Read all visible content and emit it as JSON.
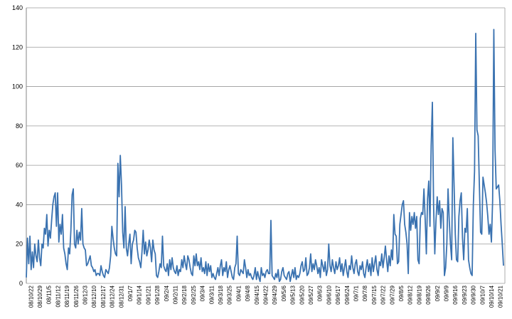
{
  "chart_data": {
    "type": "line",
    "title": "",
    "xlabel": "",
    "ylabel": "",
    "ylim": [
      0,
      140
    ],
    "yticks": [
      0,
      20,
      40,
      60,
      80,
      100,
      120,
      140
    ],
    "grid": "horizontal",
    "legend": "none",
    "line_color": "#3a72b0",
    "grid_color": "#9a9a9a",
    "xtick_labels": [
      "08/10/22",
      "08/10/29",
      "08/11/5",
      "08/11/12",
      "08/11/19",
      "08/11/26",
      "08/12/3",
      "08/12/10",
      "08/12/17",
      "08/12/24",
      "08/12/31",
      "09/1/7",
      "09/1/14",
      "09/1/21",
      "09/1/28",
      "09/2/4",
      "09/2/11",
      "09/2/18",
      "09/2/25",
      "09/3/4",
      "09/3/11",
      "09/3/18",
      "09/3/25",
      "09/4/1",
      "09/4/8",
      "09/4/15",
      "09/4/22",
      "09/4/29",
      "09/5/6",
      "09/5/13",
      "09/5/20",
      "09/5/27",
      "09/6/3",
      "09/6/10",
      "09/6/17",
      "09/6/24",
      "09/7/1",
      "09/7/8",
      "09/7/15",
      "09/7/22",
      "09/7/29",
      "09/8/5",
      "09/8/12",
      "09/8/19",
      "09/8/26",
      "09/9/2",
      "09/9/9",
      "09/9/16",
      "09/9/23",
      "09/9/30",
      "09/10/7",
      "09/10/14",
      "09/10/21"
    ],
    "values": [
      3,
      23,
      10,
      24,
      7,
      16,
      8,
      20,
      14,
      11,
      22,
      13,
      9,
      20,
      18,
      28,
      25,
      35,
      19,
      27,
      23,
      32,
      40,
      44,
      46,
      29,
      46,
      21,
      30,
      25,
      35,
      18,
      15,
      10,
      7,
      18,
      15,
      27,
      45,
      48,
      20,
      18,
      27,
      20,
      26,
      22,
      38,
      20,
      18,
      17,
      9,
      10,
      12,
      14,
      9,
      8,
      6,
      7,
      4,
      5,
      5,
      4,
      9,
      6,
      4,
      3,
      7,
      6,
      5,
      8,
      14,
      29,
      23,
      18,
      15,
      14,
      61,
      44,
      65,
      50,
      26,
      18,
      39,
      18,
      14,
      20,
      25,
      10,
      20,
      22,
      27,
      26,
      18,
      13,
      11,
      8,
      16,
      27,
      15,
      21,
      14,
      17,
      22,
      18,
      11,
      22,
      17,
      15,
      4,
      3,
      6,
      10,
      8,
      24,
      9,
      7,
      6,
      10,
      4,
      12,
      7,
      13,
      8,
      6,
      5,
      9,
      4,
      7,
      6,
      12,
      8,
      14,
      10,
      7,
      14,
      12,
      8,
      5,
      4,
      14,
      9,
      15,
      9,
      11,
      7,
      13,
      6,
      8,
      5,
      11,
      4,
      10,
      6,
      9,
      3,
      5,
      3,
      2,
      5,
      8,
      4,
      9,
      12,
      4,
      8,
      6,
      11,
      3,
      7,
      9,
      6,
      3,
      2,
      8,
      10,
      24,
      5,
      4,
      7,
      6,
      5,
      12,
      8,
      3,
      7,
      4,
      5,
      3,
      2,
      4,
      8,
      2,
      6,
      3,
      1,
      8,
      4,
      5,
      3,
      6,
      7,
      5,
      5,
      32,
      4,
      3,
      2,
      5,
      3,
      7,
      1,
      2,
      6,
      8,
      4,
      3,
      2,
      5,
      6,
      1,
      4,
      7,
      3,
      8,
      2,
      4,
      3,
      5,
      9,
      11,
      6,
      7,
      13,
      4,
      5,
      8,
      15,
      6,
      10,
      7,
      12,
      9,
      5,
      8,
      3,
      12,
      9,
      6,
      11,
      4,
      7,
      20,
      9,
      6,
      12,
      8,
      5,
      11,
      7,
      9,
      13,
      6,
      10,
      4,
      8,
      12,
      6,
      3,
      9,
      7,
      14,
      8,
      5,
      10,
      12,
      6,
      4,
      9,
      7,
      11,
      5,
      3,
      8,
      12,
      6,
      10,
      4,
      13,
      6,
      10,
      14,
      7,
      4,
      11,
      9,
      15,
      8,
      13,
      19,
      12,
      6,
      14,
      9,
      17,
      12,
      35,
      25,
      24,
      10,
      11,
      30,
      35,
      40,
      42,
      30,
      26,
      20,
      5,
      36,
      27,
      34,
      30,
      36,
      28,
      34,
      12,
      10,
      33,
      36,
      35,
      48,
      33,
      15,
      43,
      52,
      29,
      70,
      92,
      40,
      15,
      32,
      44,
      35,
      42,
      28,
      38,
      36,
      4,
      8,
      20,
      48,
      32,
      20,
      12,
      74,
      50,
      25,
      12,
      11,
      34,
      42,
      46,
      23,
      12,
      28,
      26,
      38,
      12,
      8,
      5,
      4,
      40,
      57,
      127,
      78,
      75,
      50,
      26,
      25,
      54,
      50,
      46,
      41,
      34,
      25,
      30,
      21,
      42,
      129,
      68,
      48,
      49,
      50,
      42,
      30,
      20,
      9
    ]
  }
}
